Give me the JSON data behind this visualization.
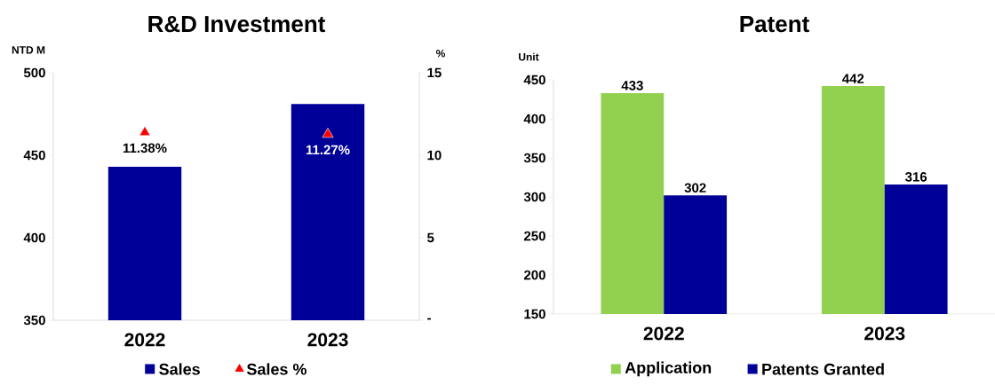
{
  "chart_data": [
    {
      "type": "bar",
      "title": "R&D Investment",
      "ylabel": "NTD M",
      "y2label": "%",
      "categories": [
        "2022",
        "2023"
      ],
      "series": [
        {
          "name": "Sales",
          "color": "#000099",
          "values": [
            443,
            481
          ]
        },
        {
          "name": "Sales %",
          "type": "scatter",
          "axis": "y2",
          "color": "#ff0000",
          "marker": "triangle",
          "values": [
            11.38,
            11.27
          ],
          "value_labels": [
            "11.38%",
            "11.27%"
          ]
        }
      ],
      "ylim": [
        350,
        500
      ],
      "yticks": [
        350,
        400,
        450,
        500
      ],
      "y2lim": [
        0,
        15
      ],
      "y2ticks": [
        {
          "value": 0,
          "label": "-"
        },
        5,
        10,
        15
      ],
      "legend": "bottom"
    },
    {
      "type": "bar",
      "title": "Patent",
      "ylabel": "Unit",
      "categories": [
        "2022",
        "2023"
      ],
      "series": [
        {
          "name": "Application",
          "color": "#92d050",
          "values": [
            433,
            442
          ]
        },
        {
          "name": "Patents Granted",
          "color": "#000099",
          "values": [
            302,
            316
          ]
        }
      ],
      "ylim": [
        150,
        450
      ],
      "yticks": [
        150,
        200,
        250,
        300,
        350,
        400,
        450
      ],
      "data_labels": true,
      "legend": "bottom"
    }
  ]
}
